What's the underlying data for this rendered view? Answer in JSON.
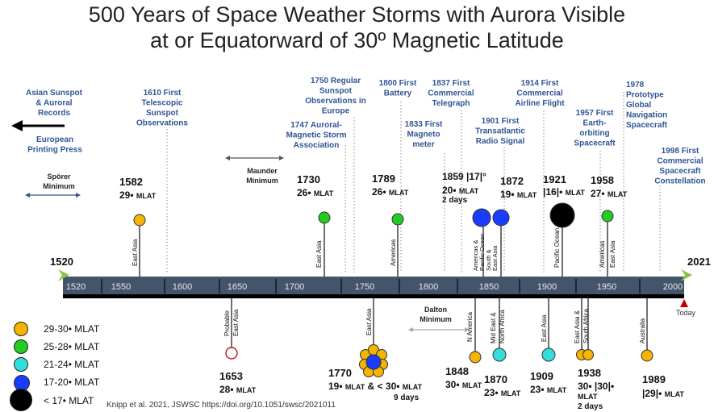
{
  "title": {
    "line1": "500 Years of  Space Weather Storms with Aurora Visible",
    "line2": "at or Equatorward of 30º Magnetic Latitude"
  },
  "timeline": {
    "start_label": "1520",
    "end_label": "2021",
    "today_label": "Today",
    "ticks": [
      "1520",
      "1550",
      "1600",
      "1650",
      "1700",
      "1750",
      "1800",
      "1850",
      "1900",
      "1950",
      "2000"
    ],
    "colors": {
      "bar": "#44546a",
      "endcap": "#8bc34a",
      "today": "#c00000",
      "milestone_text": "#2f5597"
    }
  },
  "milestones": [
    {
      "id": "asian",
      "lines": [
        "Asian Sunspot",
        "& Auroral",
        "Records"
      ]
    },
    {
      "id": "printing",
      "lines": [
        "European",
        "Printing Press"
      ]
    },
    {
      "id": "telescope",
      "lines": [
        "1610 First",
        "Telescopic",
        "Sunspot",
        "Observations"
      ]
    },
    {
      "id": "sunspot1750",
      "lines": [
        "1750  Regular",
        "Sunspot",
        "Observations in",
        "Europe"
      ]
    },
    {
      "id": "assoc1747",
      "lines": [
        "1747  Auroral-",
        "Magnetic Storm",
        "Association"
      ]
    },
    {
      "id": "battery",
      "lines": [
        "1800 First",
        "Battery"
      ]
    },
    {
      "id": "telegraph",
      "lines": [
        "1837 First",
        "Commercial",
        "Telegraph"
      ]
    },
    {
      "id": "magnetometer",
      "lines": [
        "1833 First",
        "Magneto",
        "meter"
      ]
    },
    {
      "id": "radio",
      "lines": [
        "1901 First",
        "Transatlantic",
        "Radio Signal"
      ]
    },
    {
      "id": "airline",
      "lines": [
        "1914 First",
        "Commercial",
        "Airline Flight"
      ]
    },
    {
      "id": "earthorbit",
      "lines": [
        "1957 First",
        "Earth-",
        "orbiting",
        "Spacecraft"
      ]
    },
    {
      "id": "gps",
      "lines": [
        "1978",
        "Prototype",
        "Global",
        "Navigation",
        "Spacecraft"
      ]
    },
    {
      "id": "constellation",
      "lines": [
        "1998  First",
        "Commercial",
        "Spacecraft",
        "Constellation"
      ]
    }
  ],
  "minima": [
    {
      "id": "sporer",
      "lines": [
        "Spörer",
        "Minimum"
      ]
    },
    {
      "id": "maunder",
      "lines": [
        "Maunder",
        "Minimum"
      ]
    },
    {
      "id": "dalton",
      "lines": [
        "Dalton",
        "Minimum"
      ]
    }
  ],
  "events": [
    {
      "id": "e1582",
      "year": "1582",
      "mlat": "29",
      "region": "East Asia",
      "color": "#f5b400"
    },
    {
      "id": "e1730",
      "year": "1730",
      "mlat": "26",
      "region": "East Asia",
      "color": "#22cc22"
    },
    {
      "id": "e1789",
      "year": "1789",
      "mlat": "26",
      "region": "Americas",
      "color": "#22cc22"
    },
    {
      "id": "e1859",
      "year": "1859",
      "mlat": "|17|",
      "duration": "2 days",
      "regions": [
        "Americas &",
        "Pacific Ocean",
        "South &",
        "East Asia"
      ],
      "color": "#1a3cff"
    },
    {
      "id": "e1872",
      "year": "1872",
      "mlat": "19",
      "color": "#1a3cff"
    },
    {
      "id": "e1921",
      "year": "1921",
      "mlat": "|16|",
      "region": "Pacific Ocean",
      "color": "#000000"
    },
    {
      "id": "e1958",
      "year": "1958",
      "mlat": "27",
      "region": "Americas East Asia",
      "color": "#22cc22"
    },
    {
      "id": "e1653",
      "year": "1653",
      "mlat": "28",
      "region": "Probable East Asia",
      "color": "#ffffff"
    },
    {
      "id": "e1770",
      "year": "1770",
      "mlat": "19",
      "mlat2": "< 30",
      "duration": "9 days",
      "region": "East Asia",
      "color": "#1a3cff"
    },
    {
      "id": "e1848",
      "year": "1848",
      "mlat": "30",
      "region": "N America",
      "color": "#f5b400"
    },
    {
      "id": "e1870",
      "year": "1870",
      "mlat": "23",
      "region": "Mid East & North Africa",
      "color": "#33dddd"
    },
    {
      "id": "e1909",
      "year": "1909",
      "mlat": "23",
      "region": "East Asia",
      "color": "#33dddd"
    },
    {
      "id": "e1938",
      "year": "1938",
      "mlat": "30",
      "mlat2": "|30|",
      "duration": "2 days",
      "region": "East Asia & South Africa",
      "color": "#f5b400"
    },
    {
      "id": "e1989",
      "year": "1989",
      "mlat": "|29|",
      "region": "Australia",
      "color": "#f5b400"
    }
  ],
  "mlat_unit": "MLAT",
  "legend": [
    {
      "label": "29-30• MLAT",
      "color": "#f5b400"
    },
    {
      "label": "25-28• MLAT",
      "color": "#22cc22"
    },
    {
      "label": "21-24• MLAT",
      "color": "#33dddd"
    },
    {
      "label": "17-20• MLAT",
      "color": "#1a3cff"
    },
    {
      "label": "< 17• MLAT",
      "color": "#000000"
    }
  ],
  "citation": "Knipp et al. 2021, JSWSC https://doi.org/10.1051/swsc/2021011"
}
